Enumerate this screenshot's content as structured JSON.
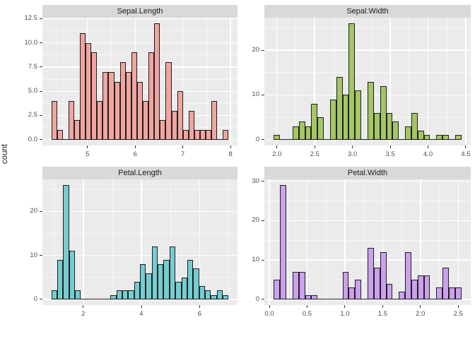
{
  "figure": {
    "y_axis_title": "count",
    "background": "#FFFFFF",
    "panel_bg": "#EBEBEB",
    "strip_bg": "#D9D9D9",
    "grid_color": "#FFFFFF",
    "axis_text_color": "#4D4D4D",
    "tick_mark_color": "#333333",
    "bar_border_color": "#1F1F1F"
  },
  "chart_data": [
    {
      "type": "bar",
      "title": "Sepal.Length",
      "fill": "#F1A5A0",
      "bin_start": 4.24,
      "binwidth": 0.12,
      "counts": [
        4,
        1,
        0,
        4,
        2,
        11,
        10,
        9,
        4,
        7,
        7,
        6,
        8,
        7,
        9,
        6,
        4,
        9,
        12,
        2,
        8,
        3,
        5,
        1,
        3,
        1,
        1,
        1,
        4,
        0,
        1
      ],
      "xlim": [
        4.054,
        8.146
      ],
      "ylim": [
        -0.6,
        12.6
      ],
      "x_ticks": [
        {
          "v": 5,
          "label": "5"
        },
        {
          "v": 6,
          "label": "6"
        },
        {
          "v": 7,
          "label": "7"
        },
        {
          "v": 8,
          "label": "8"
        }
      ],
      "y_ticks": [
        {
          "v": 0,
          "label": "0.0"
        },
        {
          "v": 2.5,
          "label": "2.5"
        },
        {
          "v": 5,
          "label": "5.0"
        },
        {
          "v": 7.5,
          "label": "7.5"
        },
        {
          "v": 10,
          "label": "10.0"
        },
        {
          "v": 12.5,
          "label": "12.5"
        }
      ]
    },
    {
      "type": "bar",
      "title": "Sepal.Width",
      "fill": "#A5C663",
      "bin_start": 1.9586,
      "binwidth": 0.0827586,
      "counts": [
        1,
        0,
        0,
        3,
        4,
        3,
        8,
        5,
        0,
        9,
        14,
        10,
        26,
        11,
        0,
        13,
        6,
        12,
        6,
        4,
        0,
        3,
        6,
        2,
        1,
        0,
        1,
        1,
        0,
        1
      ],
      "xlim": [
        1.834,
        4.566
      ],
      "ylim": [
        -1.3,
        27.3
      ],
      "x_ticks": [
        {
          "v": 2.0,
          "label": "2.0"
        },
        {
          "v": 2.5,
          "label": "2.5"
        },
        {
          "v": 3.0,
          "label": "3.0"
        },
        {
          "v": 3.5,
          "label": "3.5"
        },
        {
          "v": 4.0,
          "label": "4.0"
        },
        {
          "v": 4.5,
          "label": "4.5"
        }
      ],
      "y_ticks": [
        {
          "v": 0,
          "label": "0"
        },
        {
          "v": 10,
          "label": "10"
        },
        {
          "v": 20,
          "label": "20"
        }
      ]
    },
    {
      "type": "bar",
      "title": "Petal.Length",
      "fill": "#74CDD0",
      "bin_start": 0.898,
      "binwidth": 0.2034483,
      "counts": [
        2,
        9,
        26,
        11,
        2,
        0,
        0,
        0,
        0,
        0,
        1,
        2,
        2,
        2,
        4,
        8,
        6,
        12,
        8,
        9,
        12,
        4,
        5,
        9,
        7,
        3,
        2,
        1,
        2,
        1
      ],
      "xlim": [
        0.593,
        7.307
      ],
      "ylim": [
        -1.3,
        27.3
      ],
      "x_ticks": [
        {
          "v": 2,
          "label": "2"
        },
        {
          "v": 4,
          "label": "4"
        },
        {
          "v": 6,
          "label": "6"
        }
      ],
      "y_ticks": [
        {
          "v": 0,
          "label": "0"
        },
        {
          "v": 10,
          "label": "10"
        },
        {
          "v": 20,
          "label": "20"
        }
      ]
    },
    {
      "type": "bar",
      "title": "Petal.Width",
      "fill": "#CBA1ED",
      "bin_start": 0.0586,
      "binwidth": 0.0827586,
      "counts": [
        5,
        29,
        0,
        7,
        7,
        1,
        1,
        0,
        0,
        0,
        0,
        7,
        3,
        5,
        0,
        13,
        8,
        12,
        4,
        0,
        2,
        12,
        5,
        6,
        6,
        0,
        3,
        8,
        3,
        3
      ],
      "xlim": [
        -0.066,
        2.666
      ],
      "ylim": [
        -1.45,
        30.45
      ],
      "x_ticks": [
        {
          "v": 0.0,
          "label": "0.0"
        },
        {
          "v": 0.5,
          "label": "0.5"
        },
        {
          "v": 1.0,
          "label": "1.0"
        },
        {
          "v": 1.5,
          "label": "1.5"
        },
        {
          "v": 2.0,
          "label": "2.0"
        },
        {
          "v": 2.5,
          "label": "2.5"
        }
      ],
      "y_ticks": [
        {
          "v": 0,
          "label": "0"
        },
        {
          "v": 10,
          "label": "10"
        },
        {
          "v": 20,
          "label": "20"
        },
        {
          "v": 30,
          "label": "30"
        }
      ]
    }
  ]
}
